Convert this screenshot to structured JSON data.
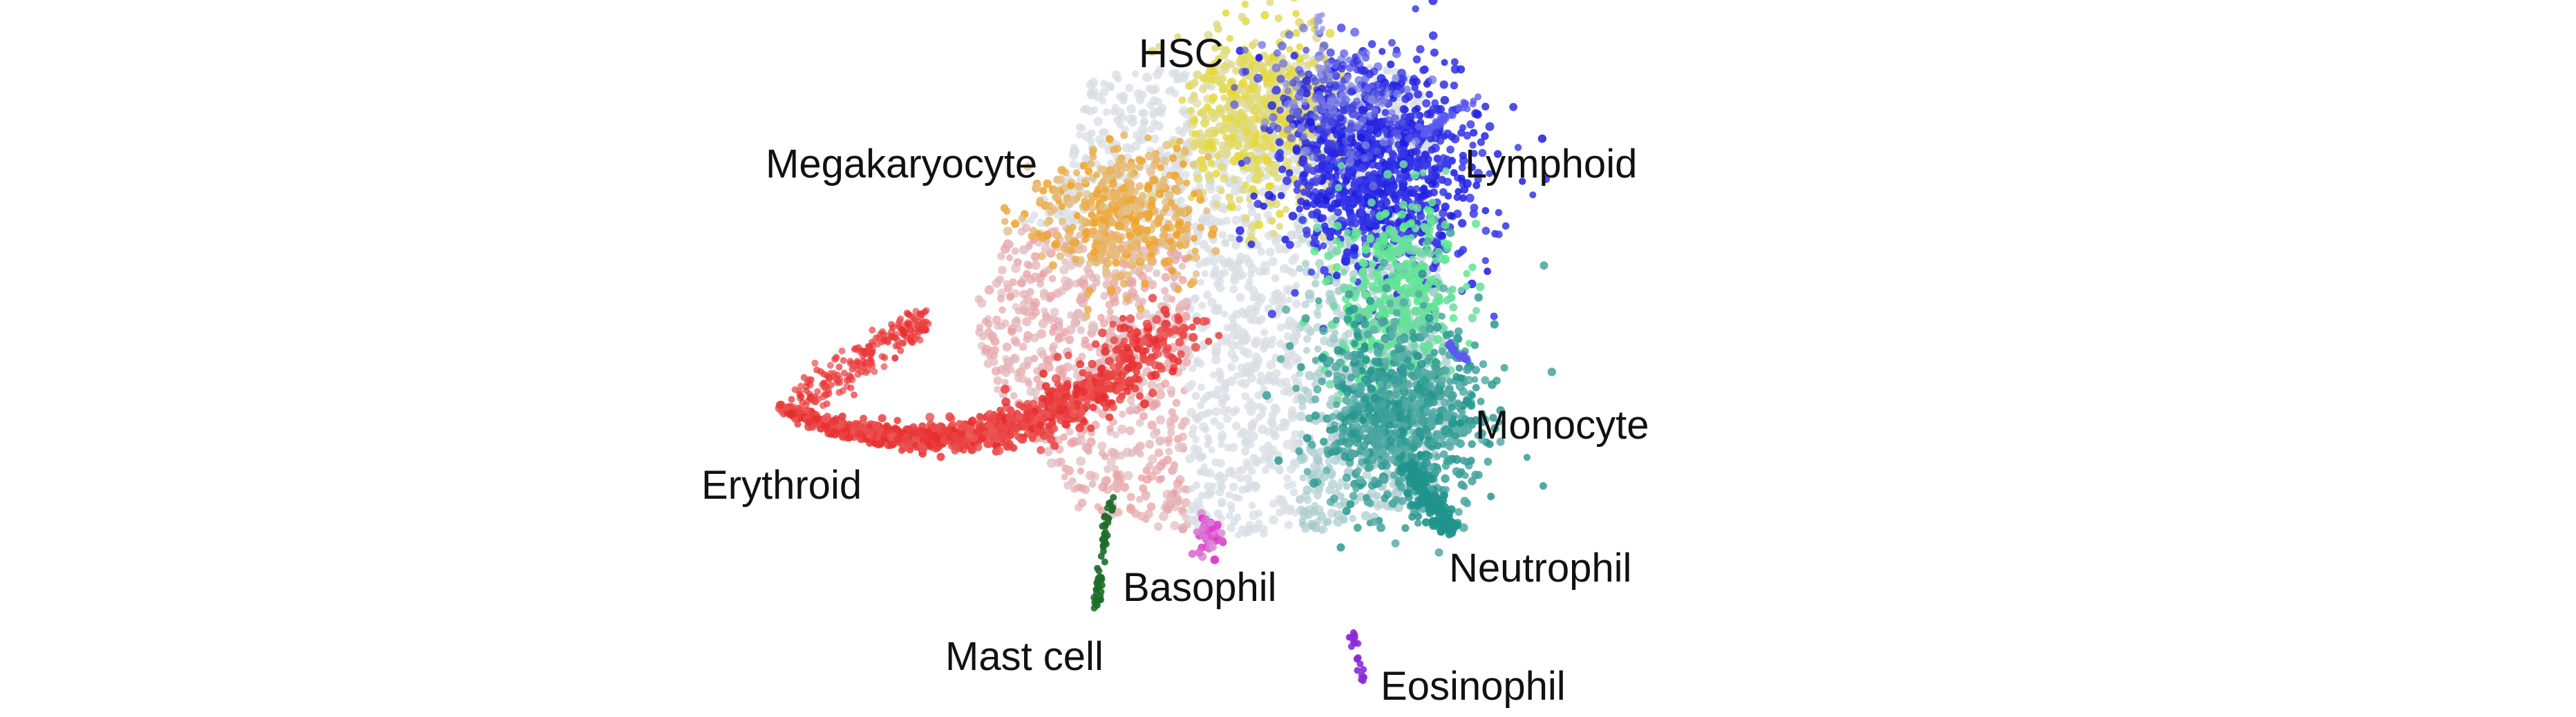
{
  "labels": {
    "hsc": "HSC",
    "megakaryocyte": "Megakaryocyte",
    "lymphoid": "Lymphoid",
    "erythroid": "Erythroid",
    "monocyte": "Monocyte",
    "neutrophil": "Neutrophil",
    "basophil": "Basophil",
    "mast_cell": "Mast cell",
    "eosinophil": "Eosinophil"
  },
  "colors": {
    "hsc": "#e6d82e",
    "megakaryocyte": "#f0a020",
    "lymphoid": "#1a1ae0",
    "lymphoid_light": "#5a5af0",
    "erythroid": "#e82a2a",
    "erythroid_light": "#f08a8a",
    "monocyte": "#55ee88",
    "neutrophil": "#1f948c",
    "teal_light": "#8ec4c0",
    "basophil": "#e028c8",
    "mast_cell": "#1e6e2a",
    "eosinophil": "#8a2ad8",
    "progenitor": "#d8dde4"
  }
}
